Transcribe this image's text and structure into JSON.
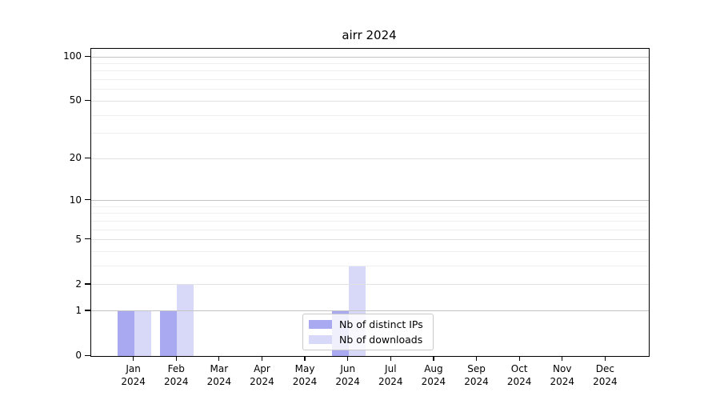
{
  "chart_data": {
    "type": "bar",
    "title": "airr 2024",
    "categories": [
      "Jan",
      "Feb",
      "Mar",
      "Apr",
      "May",
      "Jun",
      "Jul",
      "Aug",
      "Sep",
      "Oct",
      "Nov",
      "Dec"
    ],
    "year_label": "2024",
    "series": [
      {
        "name": "Nb of distinct IPs",
        "color": "#a9a9f2",
        "values": [
          1,
          1,
          0,
          0,
          0,
          1,
          0,
          0,
          0,
          0,
          0,
          0
        ]
      },
      {
        "name": "Nb of downloads",
        "color": "#d8d8f9",
        "values": [
          1,
          2,
          0,
          0,
          0,
          3,
          0,
          0,
          0,
          0,
          0,
          0
        ]
      }
    ],
    "y_scale": "log1p",
    "y_ticks": [
      0,
      1,
      2,
      5,
      10,
      20,
      50,
      100
    ],
    "y_major_gridlines": [
      1,
      10,
      100
    ],
    "y_mid_gridlines": [
      2,
      5,
      20,
      50
    ],
    "y_minor_gridlines": [
      3,
      4,
      6,
      7,
      8,
      9,
      30,
      40,
      60,
      70,
      80,
      90
    ],
    "ylim": [
      0,
      113
    ],
    "grid": "horizontal",
    "legend_position": "inside-bottom-center",
    "colors": {
      "spine": "#000000",
      "major_grid": "#c3c3c3",
      "mid_grid": "#e2e2e2",
      "minor_grid": "#efefef"
    }
  }
}
